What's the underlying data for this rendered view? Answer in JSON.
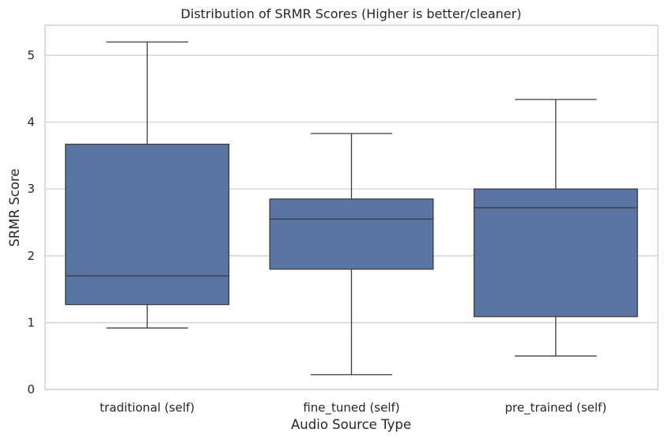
{
  "chart_data": {
    "type": "box",
    "title": "Distribution of SRMR Scores (Higher is better/cleaner)",
    "xlabel": "Audio Source Type",
    "ylabel": "SRMR Score",
    "ylim": [
      0,
      5.45
    ],
    "yticks": [
      0,
      1,
      2,
      3,
      4,
      5
    ],
    "grid": true,
    "box_color": "#5975a4",
    "line_color": "#3d3d3d",
    "categories": [
      "traditional (self)",
      "fine_tuned (self)",
      "pre_trained (self)"
    ],
    "boxes": [
      {
        "whisker_low": 0.92,
        "q1": 1.27,
        "median": 1.7,
        "q3": 3.67,
        "whisker_high": 5.2
      },
      {
        "whisker_low": 0.22,
        "q1": 1.8,
        "median": 2.55,
        "q3": 2.85,
        "whisker_high": 3.83
      },
      {
        "whisker_low": 0.5,
        "q1": 1.09,
        "median": 2.72,
        "q3": 3.0,
        "whisker_high": 4.34
      }
    ]
  }
}
